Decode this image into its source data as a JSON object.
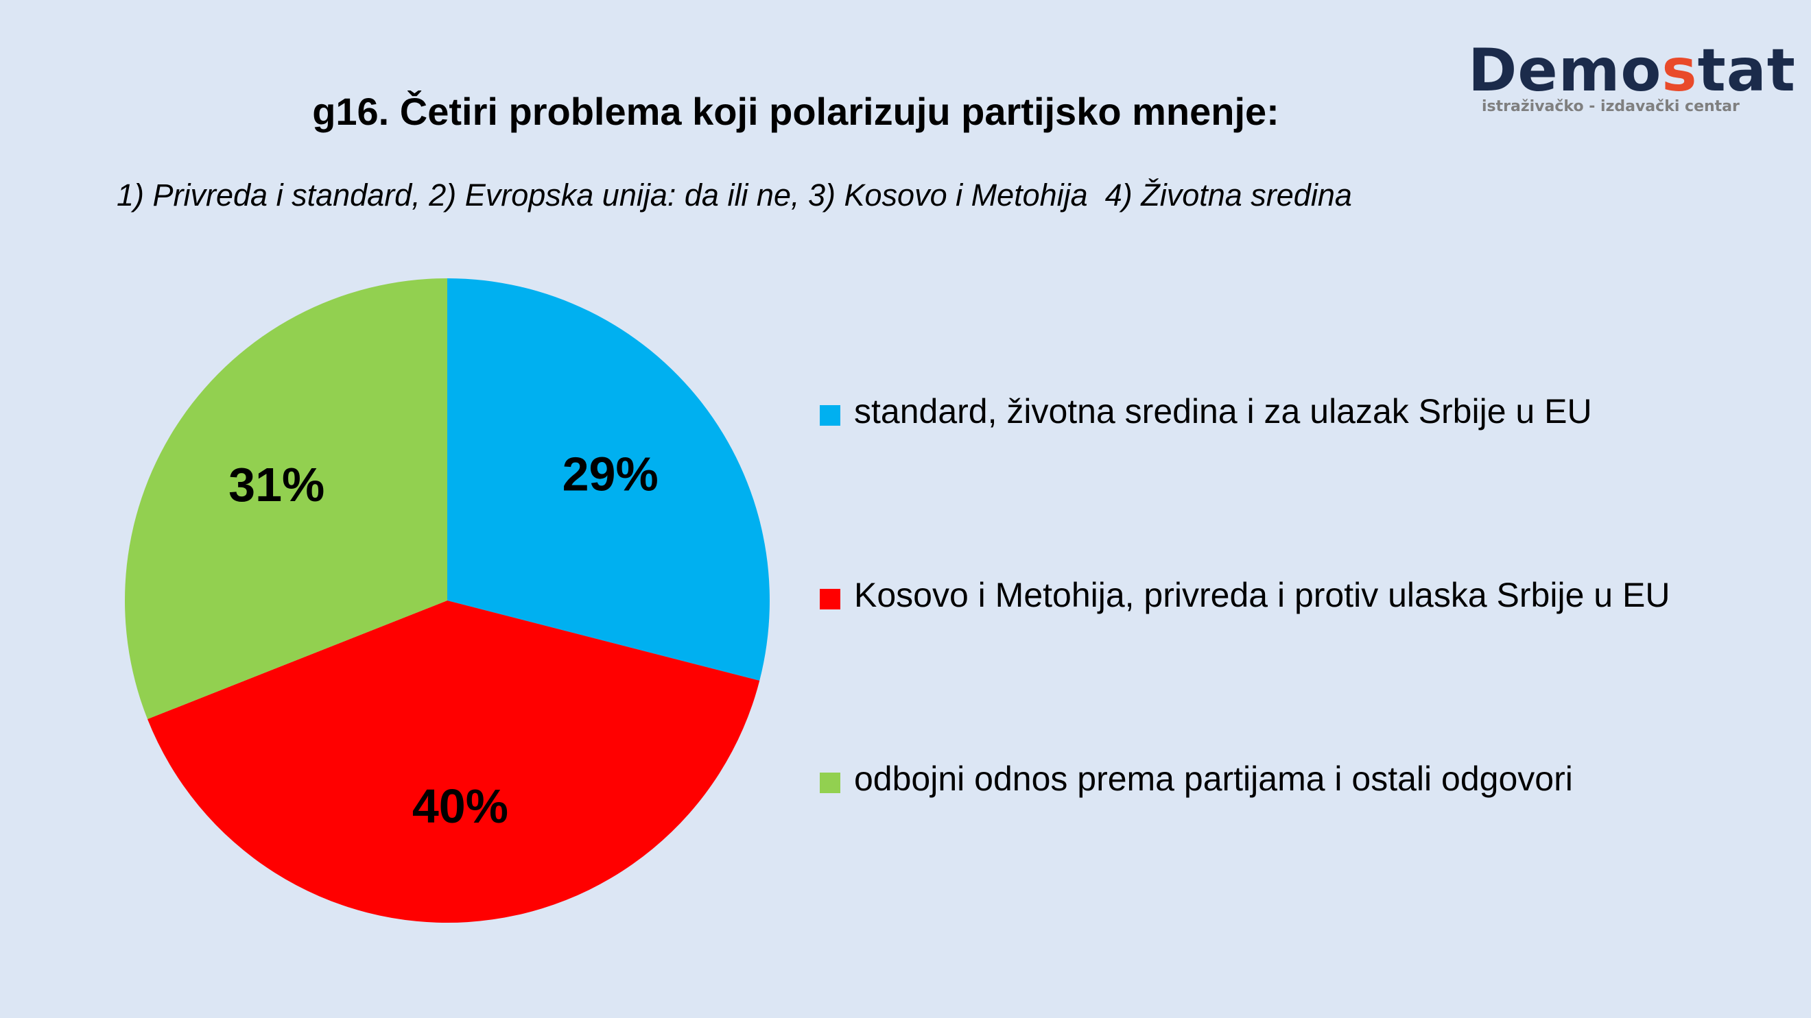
{
  "header": {
    "title": "g16. Četiri problema koji polarizuju partijsko mnenje:",
    "subtitle": "1) Privreda i standard, 2) Evropska unija: da ili ne, 3) Kosovo i Metohija  4) Životna sredina"
  },
  "logo": {
    "word_start": "Demo",
    "word_accent": "s",
    "word_end": "tat",
    "tagline": "istraživačko - izdavački  centar",
    "colors": {
      "main": "#1b2b4b",
      "accent": "#e94a2a"
    }
  },
  "chart_data": {
    "type": "pie",
    "title": "g16. Četiri problema koji polarizuju partijsko mnenje:",
    "start_angle": "top, clockwise",
    "slices": [
      {
        "label": "standard, životna sredina i za ulazak Srbije u EU",
        "value": 29,
        "display": "29%",
        "color": "#00b0f0"
      },
      {
        "label": "Kosovo i Metohija, privreda i protiv ulaska Srbije u EU",
        "value": 40,
        "display": "40%",
        "color": "#ff0000"
      },
      {
        "label": "odbojni odnos prema partijama i ostali odgovori",
        "value": 31,
        "display": "31%",
        "color": "#92d050"
      }
    ],
    "legend_position": "right"
  }
}
